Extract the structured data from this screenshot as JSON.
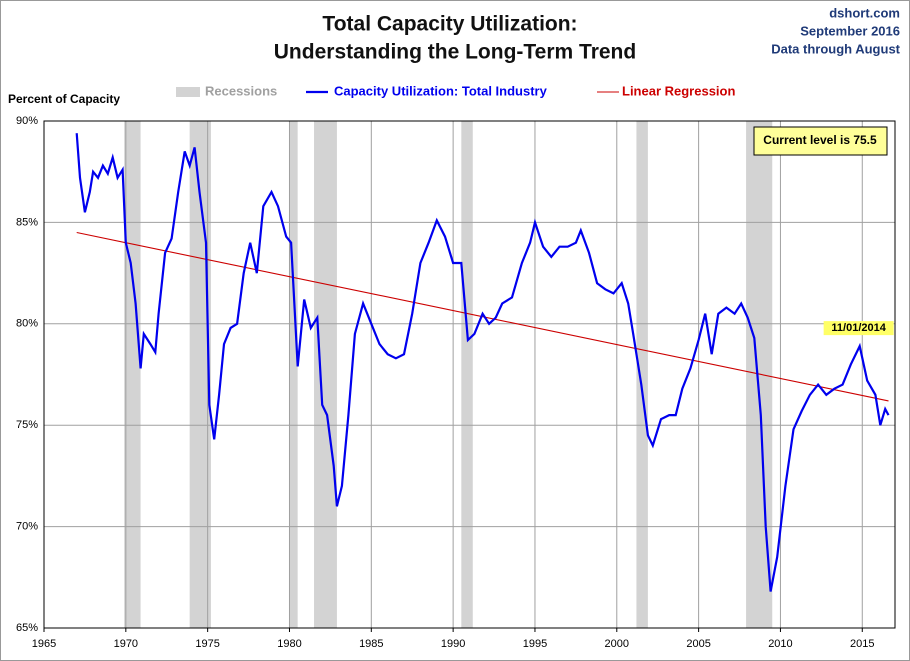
{
  "chart_data": {
    "type": "line",
    "title": "Total Capacity Utilization:",
    "subtitle": "Understanding  the Long-Term Trend",
    "source": [
      "dshort.com",
      "September 2016",
      "Data through August"
    ],
    "y_label": "Percent of Capacity",
    "annotations": [
      {
        "text": "Current level is 75.5"
      },
      {
        "text": "11/01/2014",
        "x": 2014.84,
        "y": 78.9
      }
    ],
    "xlim": [
      1965,
      2017
    ],
    "xticks": [
      1965,
      1970,
      1975,
      1980,
      1985,
      1990,
      1995,
      2000,
      2005,
      2010,
      2015
    ],
    "ylim": [
      65,
      90
    ],
    "yticks": [
      {
        "value": 65,
        "label": "65%"
      },
      {
        "value": 70,
        "label": "70%"
      },
      {
        "value": 75,
        "label": "75%"
      },
      {
        "value": 80,
        "label": "80%"
      },
      {
        "value": 85,
        "label": "85%"
      },
      {
        "value": 90,
        "label": "90%"
      }
    ],
    "grid": true,
    "recessions": {
      "name": "Recessions",
      "color": "#d3d3d3",
      "ranges": [
        [
          1969.9,
          1970.9
        ],
        [
          1973.9,
          1975.2
        ],
        [
          1980.0,
          1980.5
        ],
        [
          1981.5,
          1982.9
        ],
        [
          1990.5,
          1991.2
        ],
        [
          2001.2,
          2001.9
        ],
        [
          2007.9,
          2009.5
        ]
      ]
    },
    "series": [
      {
        "name": "Capacity Utilization: Total Industry",
        "color": "#0000ee",
        "x": [
          1967.0,
          1967.2,
          1967.5,
          1967.8,
          1968.0,
          1968.3,
          1968.6,
          1968.9,
          1969.2,
          1969.5,
          1969.8,
          1970.0,
          1970.3,
          1970.6,
          1970.9,
          1971.1,
          1971.5,
          1971.8,
          1972.0,
          1972.4,
          1972.8,
          1973.2,
          1973.6,
          1973.9,
          1974.2,
          1974.5,
          1974.9,
          1975.1,
          1975.4,
          1975.7,
          1976.0,
          1976.4,
          1976.8,
          1977.2,
          1977.6,
          1978.0,
          1978.4,
          1978.9,
          1979.3,
          1979.8,
          1980.1,
          1980.5,
          1980.9,
          1981.3,
          1981.7,
          1982.0,
          1982.3,
          1982.7,
          1982.9,
          1983.2,
          1983.6,
          1984.0,
          1984.5,
          1985.0,
          1985.5,
          1986.0,
          1986.5,
          1987.0,
          1987.5,
          1988.0,
          1988.5,
          1989.0,
          1989.5,
          1990.0,
          1990.5,
          1990.9,
          1991.3,
          1991.8,
          1992.2,
          1992.6,
          1993.0,
          1993.6,
          1994.2,
          1994.7,
          1995.0,
          1995.5,
          1996.0,
          1996.5,
          1997.0,
          1997.5,
          1997.8,
          1998.3,
          1998.8,
          1999.3,
          1999.8,
          2000.3,
          2000.7,
          2001.0,
          2001.5,
          2001.9,
          2002.2,
          2002.7,
          2003.2,
          2003.6,
          2004.0,
          2004.5,
          2005.0,
          2005.4,
          2005.8,
          2006.2,
          2006.7,
          2007.2,
          2007.6,
          2008.0,
          2008.4,
          2008.8,
          2009.1,
          2009.4,
          2009.8,
          2010.3,
          2010.8,
          2011.3,
          2011.8,
          2012.3,
          2012.8,
          2013.3,
          2013.8,
          2014.3,
          2014.84,
          2015.3,
          2015.8,
          2016.1,
          2016.4,
          2016.6
        ],
        "values": [
          89.4,
          87.2,
          85.5,
          86.5,
          87.5,
          87.2,
          87.8,
          87.4,
          88.2,
          87.2,
          87.6,
          84.0,
          83.0,
          81.0,
          77.8,
          79.5,
          79.0,
          78.6,
          80.5,
          83.5,
          84.2,
          86.5,
          88.5,
          87.8,
          88.7,
          86.5,
          84.0,
          76.0,
          74.3,
          76.5,
          79.0,
          79.8,
          80.0,
          82.5,
          84.0,
          82.5,
          85.8,
          86.5,
          85.8,
          84.3,
          84.0,
          77.9,
          81.2,
          79.8,
          80.3,
          76.0,
          75.5,
          73.0,
          71.0,
          72.0,
          75.5,
          79.5,
          81.0,
          80.0,
          79.0,
          78.5,
          78.3,
          78.5,
          80.5,
          83.0,
          84.0,
          85.1,
          84.3,
          83.0,
          83.0,
          79.2,
          79.5,
          80.5,
          80.0,
          80.3,
          81.0,
          81.3,
          83.0,
          84.0,
          85.0,
          83.8,
          83.3,
          83.8,
          83.8,
          84.0,
          84.6,
          83.5,
          82.0,
          81.7,
          81.5,
          82.0,
          81.0,
          79.5,
          77.0,
          74.5,
          74.0,
          75.3,
          75.5,
          75.5,
          76.8,
          77.8,
          79.2,
          80.5,
          78.5,
          80.5,
          80.8,
          80.5,
          81.0,
          80.3,
          79.3,
          75.5,
          70.0,
          66.8,
          68.5,
          72.0,
          74.8,
          75.7,
          76.5,
          77.0,
          76.5,
          76.8,
          77.0,
          78.0,
          78.9,
          77.2,
          76.5,
          75.0,
          75.8,
          75.5
        ]
      },
      {
        "name": "Linear Regression",
        "color": "#cc0000",
        "x": [
          1967.0,
          2016.6
        ],
        "values": [
          84.5,
          76.2
        ]
      }
    ]
  }
}
